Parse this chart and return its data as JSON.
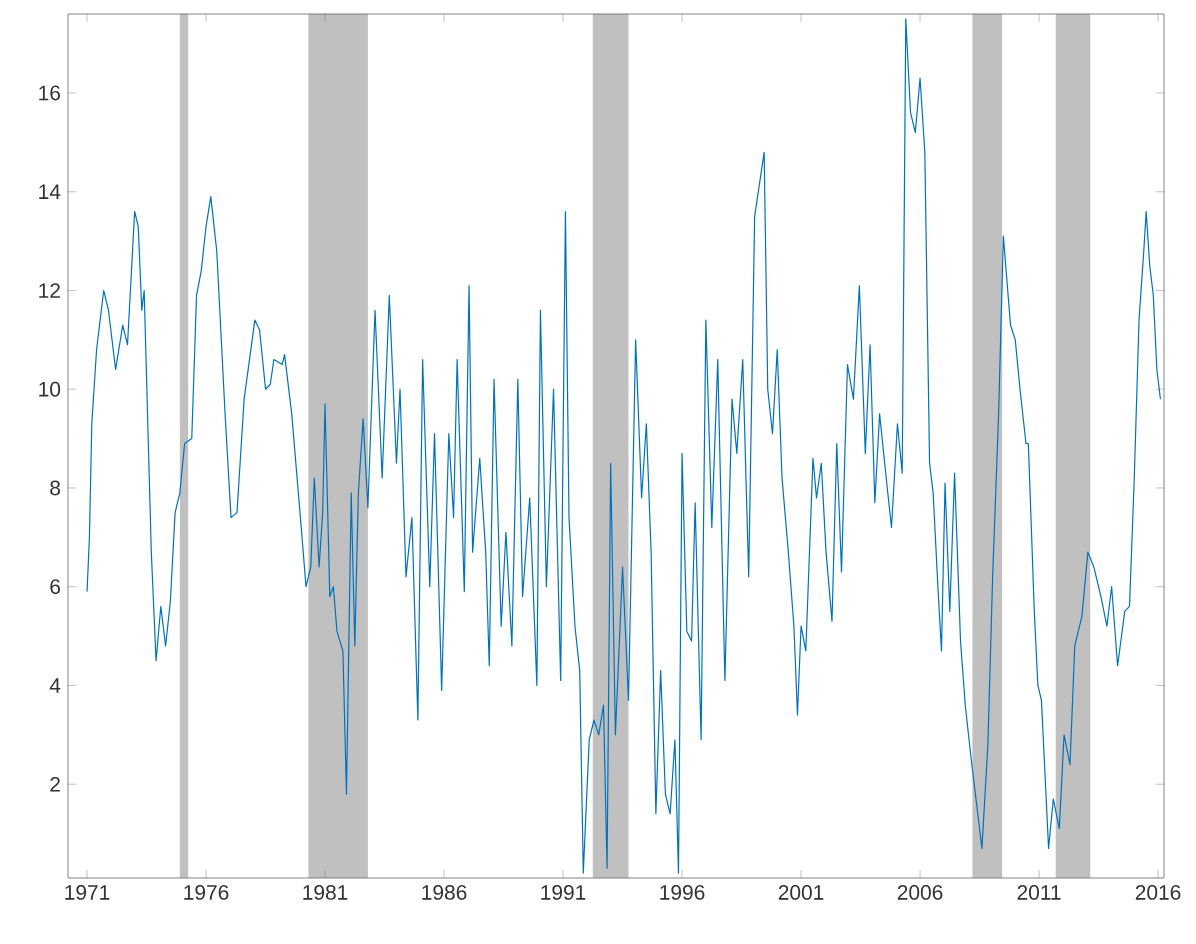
{
  "chart_data": {
    "type": "line",
    "xlim": [
      1970.2,
      2016.25
    ],
    "ylim": [
      0.1,
      17.6
    ],
    "xticks": [
      1971,
      1976,
      1981,
      1986,
      1991,
      1996,
      2001,
      2006,
      2011,
      2016
    ],
    "yticks": [
      2,
      4,
      6,
      8,
      10,
      12,
      14,
      16
    ],
    "grid": false,
    "marker": "none",
    "line_style": "solid",
    "bands": [
      {
        "axis": "x",
        "from": 1974.9,
        "to": 1975.25,
        "color": "#c0c0c0"
      },
      {
        "axis": "x",
        "from": 1980.3,
        "to": 1982.8,
        "color": "#c0c0c0"
      },
      {
        "axis": "x",
        "from": 1992.25,
        "to": 1993.75,
        "color": "#c0c0c0"
      },
      {
        "axis": "x",
        "from": 2008.2,
        "to": 2009.45,
        "color": "#c0c0c0"
      },
      {
        "axis": "x",
        "from": 2011.7,
        "to": 2013.15,
        "color": "#c0c0c0"
      }
    ],
    "series": [
      {
        "color": "#0072bd",
        "x": [
          1971.0,
          1971.1,
          1971.2,
          1971.4,
          1971.7,
          1971.9,
          1972.2,
          1972.5,
          1972.7,
          1973.0,
          1973.15,
          1973.3,
          1973.4,
          1973.7,
          1973.9,
          1974.1,
          1974.3,
          1974.5,
          1974.7,
          1974.9,
          1975.1,
          1975.4,
          1975.6,
          1975.8,
          1976.0,
          1976.2,
          1976.45,
          1976.8,
          1977.05,
          1977.3,
          1977.6,
          1978.05,
          1978.25,
          1978.5,
          1978.7,
          1978.85,
          1979.2,
          1979.3,
          1979.6,
          1980.0,
          1980.2,
          1980.4,
          1980.55,
          1980.75,
          1980.9,
          1981.0,
          1981.2,
          1981.35,
          1981.5,
          1981.75,
          1981.9,
          1982.1,
          1982.25,
          1982.4,
          1982.6,
          1982.8,
          1983.1,
          1983.4,
          1983.7,
          1984.0,
          1984.15,
          1984.4,
          1984.65,
          1984.9,
          1985.1,
          1985.4,
          1985.6,
          1985.9,
          1986.2,
          1986.4,
          1986.55,
          1986.85,
          1987.05,
          1987.2,
          1987.5,
          1987.75,
          1987.9,
          1988.1,
          1988.4,
          1988.6,
          1988.85,
          1989.1,
          1989.3,
          1989.6,
          1989.9,
          1990.05,
          1990.3,
          1990.6,
          1990.9,
          1991.1,
          1991.25,
          1991.5,
          1991.7,
          1991.85,
          1992.1,
          1992.3,
          1992.5,
          1992.7,
          1992.85,
          1993.0,
          1993.2,
          1993.5,
          1993.75,
          1994.05,
          1994.3,
          1994.5,
          1994.7,
          1994.9,
          1995.1,
          1995.3,
          1995.5,
          1995.7,
          1995.85,
          1996.0,
          1996.2,
          1996.4,
          1996.55,
          1996.8,
          1997.0,
          1997.25,
          1997.5,
          1997.8,
          1998.1,
          1998.3,
          1998.55,
          1998.8,
          1999.05,
          1999.45,
          1999.6,
          1999.8,
          2000.0,
          2000.2,
          2000.45,
          2000.7,
          2000.85,
          2001.0,
          2001.2,
          2001.5,
          2001.65,
          2001.85,
          2002.05,
          2002.3,
          2002.5,
          2002.7,
          2002.95,
          2003.2,
          2003.45,
          2003.7,
          2003.9,
          2004.1,
          2004.3,
          2004.6,
          2004.8,
          2005.05,
          2005.25,
          2005.4,
          2005.6,
          2005.8,
          2006.0,
          2006.2,
          2006.4,
          2006.55,
          2006.75,
          2006.9,
          2007.05,
          2007.25,
          2007.45,
          2007.7,
          2007.9,
          2008.15,
          2008.45,
          2008.6,
          2008.85,
          2009.05,
          2009.3,
          2009.5,
          2009.8,
          2010.0,
          2010.2,
          2010.45,
          2010.55,
          2010.8,
          2010.95,
          2011.1,
          2011.3,
          2011.4,
          2011.6,
          2011.85,
          2012.05,
          2012.3,
          2012.5,
          2012.8,
          2013.05,
          2013.3,
          2013.6,
          2013.85,
          2014.05,
          2014.3,
          2014.6,
          2014.8,
          2015.0,
          2015.2,
          2015.4,
          2015.5,
          2015.65,
          2015.8,
          2015.95,
          2016.1
        ],
        "values": [
          5.9,
          7.0,
          9.3,
          10.8,
          12.0,
          11.6,
          10.4,
          11.3,
          10.9,
          13.6,
          13.3,
          11.6,
          12.0,
          6.7,
          4.5,
          5.6,
          4.8,
          5.7,
          7.5,
          7.9,
          8.9,
          9.0,
          11.9,
          12.4,
          13.3,
          13.9,
          12.8,
          9.5,
          7.4,
          7.5,
          9.8,
          11.4,
          11.2,
          10.0,
          10.1,
          10.6,
          10.5,
          10.7,
          9.5,
          7.2,
          6.0,
          6.4,
          8.2,
          6.4,
          7.5,
          9.7,
          5.8,
          6.0,
          5.1,
          4.7,
          1.8,
          7.9,
          4.8,
          7.9,
          9.4,
          7.6,
          11.6,
          8.2,
          11.9,
          8.5,
          10.0,
          6.2,
          7.4,
          3.3,
          10.6,
          6.0,
          9.1,
          3.9,
          9.1,
          7.4,
          10.6,
          5.9,
          12.1,
          6.7,
          8.6,
          6.7,
          4.4,
          10.2,
          5.2,
          7.1,
          4.8,
          10.2,
          5.8,
          7.8,
          4.0,
          11.6,
          6.0,
          10.0,
          4.1,
          13.6,
          7.4,
          5.2,
          4.3,
          0.2,
          2.9,
          3.3,
          3.0,
          3.6,
          0.3,
          8.5,
          3.0,
          6.4,
          3.7,
          11.0,
          7.8,
          9.3,
          6.7,
          1.4,
          4.3,
          1.8,
          1.4,
          2.9,
          0.2,
          8.7,
          5.1,
          4.9,
          7.7,
          2.9,
          11.4,
          7.2,
          10.6,
          4.1,
          9.8,
          8.7,
          10.6,
          6.2,
          13.5,
          14.8,
          10.0,
          9.1,
          10.8,
          8.2,
          6.8,
          5.2,
          3.4,
          5.2,
          4.7,
          8.6,
          7.8,
          8.5,
          6.7,
          5.3,
          8.9,
          6.3,
          10.5,
          9.8,
          12.1,
          8.7,
          10.9,
          7.7,
          9.5,
          8.1,
          7.2,
          9.3,
          8.3,
          17.5,
          15.6,
          15.2,
          16.3,
          14.8,
          8.5,
          7.9,
          6.0,
          4.7,
          8.1,
          5.5,
          8.3,
          4.9,
          3.6,
          2.5,
          1.3,
          0.7,
          2.8,
          6.2,
          9.5,
          13.1,
          11.3,
          11.0,
          10.0,
          8.9,
          8.9,
          5.5,
          4.0,
          3.7,
          1.7,
          0.7,
          1.7,
          1.1,
          3.0,
          2.4,
          4.8,
          5.4,
          6.7,
          6.4,
          5.8,
          5.2,
          6.0,
          4.4,
          5.5,
          5.6,
          8.2,
          11.4,
          12.8,
          13.6,
          12.5,
          11.9,
          10.4,
          9.8
        ]
      }
    ]
  }
}
